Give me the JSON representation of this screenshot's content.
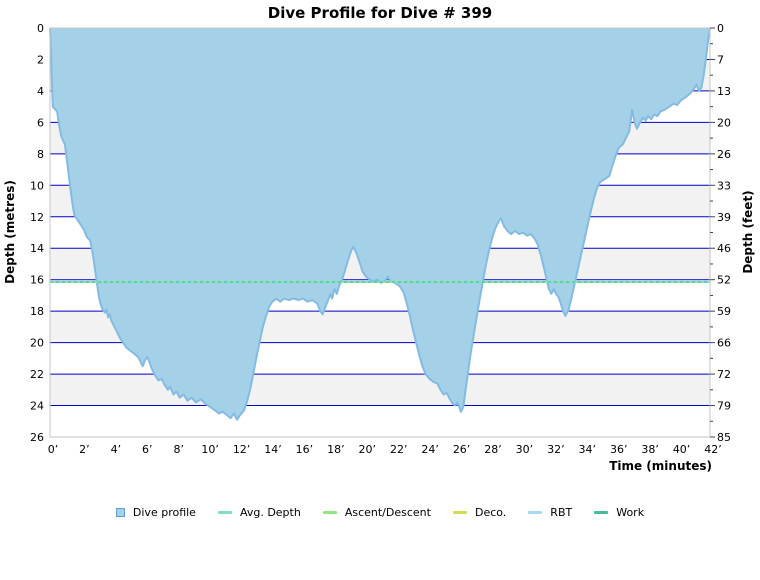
{
  "title": "Dive Profile for Dive # 399",
  "axes": {
    "left_label": "Depth (metres)",
    "right_label": "Depth (feet)",
    "bottom_label": "Time (minutes)",
    "metre_tick_labels": [
      "0",
      "2",
      "4",
      "6",
      "8",
      "10",
      "12",
      "14",
      "16",
      "18",
      "20",
      "22",
      "24",
      "26"
    ],
    "feet_tick_labels": [
      "0",
      "7",
      "13",
      "20",
      "26",
      "33",
      "39",
      "46",
      "52",
      "59",
      "66",
      "72",
      "79",
      "85"
    ],
    "time_tick_labels": [
      "0’",
      "2’",
      "4’",
      "6’",
      "8’",
      "10’",
      "12’",
      "14’",
      "16’",
      "18’",
      "20’",
      "22’",
      "24’",
      "26’",
      "28’",
      "30’",
      "32’",
      "34’",
      "36’",
      "38’",
      "40’",
      "42’"
    ]
  },
  "colors": {
    "profile_fill": "#a4d1e8",
    "profile_stroke": "#83bbe3",
    "gridline": "#0000cd",
    "band_gray": "#f2f2f2",
    "band_white": "#ffffff",
    "plot_border": "#c6c6c6",
    "avg_depth_green": "#8de68f",
    "avg_depth_teal": "#5ad0b2",
    "tick": "#444444"
  },
  "legend": {
    "items": [
      {
        "label": "Dive profile",
        "marker": "square",
        "color": "#a6d2e8"
      },
      {
        "label": "Avg. Depth",
        "marker": "line",
        "color": "#82e0c0"
      },
      {
        "label": "Ascent/Descent",
        "marker": "line",
        "color": "#90e87e"
      },
      {
        "label": "Deco.",
        "marker": "line",
        "color": "#d4dc52"
      },
      {
        "label": "RBT",
        "marker": "line",
        "color": "#a8d7f0"
      },
      {
        "label": "Work",
        "marker": "line",
        "color": "#44bb99"
      }
    ]
  },
  "chart_data": {
    "type": "area",
    "title": "Dive Profile for Dive # 399",
    "xlabel": "Time (minutes)",
    "ylabel": "Depth (metres)",
    "y2label": "Depth (feet)",
    "xlim": [
      0,
      42
    ],
    "ylim": [
      26,
      0
    ],
    "x_tick_step_min": 2,
    "y_tick_step_m": 2,
    "grid": true,
    "legend_position": "bottom",
    "avg_depth_m": 16.15,
    "max_depth_m": 24.9,
    "duration_min": 42,
    "series": [
      {
        "name": "Dive profile",
        "units": [
          "minutes",
          "metres"
        ],
        "points": [
          [
            0,
            0
          ],
          [
            0.08,
            2
          ],
          [
            0.13,
            3.6
          ],
          [
            0.18,
            5
          ],
          [
            0.45,
            5.3
          ],
          [
            0.6,
            6.3
          ],
          [
            0.72,
            6.9
          ],
          [
            0.95,
            7.4
          ],
          [
            1.05,
            8.2
          ],
          [
            1.15,
            9
          ],
          [
            1.25,
            9.8
          ],
          [
            1.35,
            10.6
          ],
          [
            1.45,
            11.3
          ],
          [
            1.55,
            11.9
          ],
          [
            1.75,
            12.2
          ],
          [
            1.95,
            12.5
          ],
          [
            2.15,
            12.8
          ],
          [
            2.35,
            13.3
          ],
          [
            2.55,
            13.5
          ],
          [
            2.7,
            14.2
          ],
          [
            2.8,
            14.9
          ],
          [
            2.9,
            15.6
          ],
          [
            3,
            16.3
          ],
          [
            3.1,
            17
          ],
          [
            3.2,
            17.5
          ],
          [
            3.35,
            17.9
          ],
          [
            3.5,
            18.1
          ],
          [
            3.6,
            17.9
          ],
          [
            3.7,
            18.4
          ],
          [
            3.8,
            18.2
          ],
          [
            3.9,
            18.6
          ],
          [
            4.05,
            18.9
          ],
          [
            4.25,
            19.3
          ],
          [
            4.45,
            19.7
          ],
          [
            4.65,
            20
          ],
          [
            4.85,
            20.3
          ],
          [
            5.1,
            20.5
          ],
          [
            5.35,
            20.7
          ],
          [
            5.6,
            20.9
          ],
          [
            5.75,
            21.2
          ],
          [
            5.9,
            21.5
          ],
          [
            6.05,
            21.1
          ],
          [
            6.2,
            20.9
          ],
          [
            6.35,
            21.3
          ],
          [
            6.5,
            21.7
          ],
          [
            6.7,
            22.1
          ],
          [
            6.9,
            22.4
          ],
          [
            7.1,
            22.3
          ],
          [
            7.3,
            22.7
          ],
          [
            7.5,
            23
          ],
          [
            7.65,
            22.8
          ],
          [
            7.85,
            23.3
          ],
          [
            8.05,
            23.1
          ],
          [
            8.25,
            23.5
          ],
          [
            8.5,
            23.3
          ],
          [
            8.75,
            23.7
          ],
          [
            9,
            23.5
          ],
          [
            9.3,
            23.8
          ],
          [
            9.6,
            23.6
          ],
          [
            9.9,
            23.9
          ],
          [
            10.2,
            24.1
          ],
          [
            10.5,
            24.3
          ],
          [
            10.75,
            24.5
          ],
          [
            11,
            24.4
          ],
          [
            11.25,
            24.6
          ],
          [
            11.5,
            24.8
          ],
          [
            11.7,
            24.5
          ],
          [
            11.9,
            24.9
          ],
          [
            12.1,
            24.6
          ],
          [
            12.35,
            24.3
          ],
          [
            12.55,
            23.7
          ],
          [
            12.75,
            22.9
          ],
          [
            12.95,
            21.9
          ],
          [
            13.15,
            20.9
          ],
          [
            13.35,
            19.9
          ],
          [
            13.55,
            19
          ],
          [
            13.75,
            18.3
          ],
          [
            13.95,
            17.7
          ],
          [
            14.15,
            17.4
          ],
          [
            14.4,
            17.2
          ],
          [
            14.65,
            17.4
          ],
          [
            14.9,
            17.2
          ],
          [
            15.2,
            17.3
          ],
          [
            15.5,
            17.2
          ],
          [
            15.8,
            17.3
          ],
          [
            16.1,
            17.2
          ],
          [
            16.4,
            17.4
          ],
          [
            16.7,
            17.3
          ],
          [
            17,
            17.5
          ],
          [
            17.2,
            18
          ],
          [
            17.35,
            18.2
          ],
          [
            17.5,
            17.8
          ],
          [
            17.7,
            17.3
          ],
          [
            17.85,
            16.9
          ],
          [
            17.95,
            17.2
          ],
          [
            18.1,
            16.6
          ],
          [
            18.25,
            16.9
          ],
          [
            18.4,
            16.4
          ],
          [
            18.55,
            16.1
          ],
          [
            18.75,
            15.5
          ],
          [
            18.95,
            14.8
          ],
          [
            19.15,
            14.2
          ],
          [
            19.3,
            13.9
          ],
          [
            19.5,
            14.3
          ],
          [
            19.7,
            14.9
          ],
          [
            19.9,
            15.5
          ],
          [
            20.1,
            15.8
          ],
          [
            20.35,
            16
          ],
          [
            20.6,
            16.1
          ],
          [
            20.85,
            16
          ],
          [
            21.05,
            16.2
          ],
          [
            21.3,
            16.1
          ],
          [
            21.5,
            15.8
          ],
          [
            21.65,
            16.1
          ],
          [
            21.95,
            16.2
          ],
          [
            22.25,
            16.4
          ],
          [
            22.5,
            16.8
          ],
          [
            22.7,
            17.5
          ],
          [
            22.9,
            18.3
          ],
          [
            23.1,
            19.2
          ],
          [
            23.3,
            20
          ],
          [
            23.5,
            20.8
          ],
          [
            23.7,
            21.5
          ],
          [
            23.9,
            22
          ],
          [
            24.15,
            22.3
          ],
          [
            24.4,
            22.5
          ],
          [
            24.65,
            22.6
          ],
          [
            24.85,
            23
          ],
          [
            25.05,
            23.3
          ],
          [
            25.25,
            23.2
          ],
          [
            25.45,
            23.6
          ],
          [
            25.65,
            23.9
          ],
          [
            25.8,
            24
          ],
          [
            25.92,
            23.8
          ],
          [
            26.05,
            24.1
          ],
          [
            26.15,
            24.4
          ],
          [
            26.3,
            24.1
          ],
          [
            26.45,
            23
          ],
          [
            26.6,
            21.9
          ],
          [
            26.75,
            20.8
          ],
          [
            26.95,
            19.6
          ],
          [
            27.15,
            18.4
          ],
          [
            27.35,
            17.2
          ],
          [
            27.55,
            16.1
          ],
          [
            27.75,
            15
          ],
          [
            27.95,
            14.1
          ],
          [
            28.15,
            13.3
          ],
          [
            28.35,
            12.7
          ],
          [
            28.55,
            12.3
          ],
          [
            28.7,
            12.1
          ],
          [
            28.9,
            12.6
          ],
          [
            29.1,
            12.9
          ],
          [
            29.35,
            13.1
          ],
          [
            29.6,
            12.9
          ],
          [
            29.85,
            13.1
          ],
          [
            30.1,
            13
          ],
          [
            30.35,
            13.2
          ],
          [
            30.6,
            13.1
          ],
          [
            30.85,
            13.4
          ],
          [
            31.05,
            13.8
          ],
          [
            31.25,
            14.5
          ],
          [
            31.45,
            15.3
          ],
          [
            31.6,
            16
          ],
          [
            31.75,
            16.6
          ],
          [
            31.9,
            16.9
          ],
          [
            32.05,
            16.6
          ],
          [
            32.2,
            16.9
          ],
          [
            32.35,
            17.1
          ],
          [
            32.5,
            17.5
          ],
          [
            32.65,
            18
          ],
          [
            32.8,
            18.3
          ],
          [
            33,
            17.9
          ],
          [
            33.2,
            17.1
          ],
          [
            33.4,
            16.2
          ],
          [
            33.6,
            15.3
          ],
          [
            33.8,
            14.4
          ],
          [
            34,
            13.5
          ],
          [
            34.2,
            12.6
          ],
          [
            34.4,
            11.7
          ],
          [
            34.6,
            10.9
          ],
          [
            34.8,
            10.2
          ],
          [
            35,
            9.8
          ],
          [
            35.3,
            9.6
          ],
          [
            35.6,
            9.4
          ],
          [
            35.8,
            8.7
          ],
          [
            36,
            8.1
          ],
          [
            36.2,
            7.6
          ],
          [
            36.45,
            7.4
          ],
          [
            36.65,
            7
          ],
          [
            36.85,
            6.6
          ],
          [
            37.05,
            5.2
          ],
          [
            37.2,
            6
          ],
          [
            37.35,
            6.4
          ],
          [
            37.55,
            6
          ],
          [
            37.75,
            5.7
          ],
          [
            37.9,
            5.9
          ],
          [
            38.05,
            5.6
          ],
          [
            38.25,
            5.8
          ],
          [
            38.45,
            5.5
          ],
          [
            38.65,
            5.6
          ],
          [
            38.85,
            5.3
          ],
          [
            39.1,
            5.2
          ],
          [
            39.4,
            5
          ],
          [
            39.7,
            4.8
          ],
          [
            39.9,
            4.9
          ],
          [
            40.15,
            4.6
          ],
          [
            40.45,
            4.4
          ],
          [
            40.7,
            4.2
          ],
          [
            40.95,
            3.9
          ],
          [
            41.15,
            3.6
          ],
          [
            41.3,
            4
          ],
          [
            41.45,
            3.8
          ],
          [
            41.6,
            3
          ],
          [
            41.75,
            1.9
          ],
          [
            41.9,
            0.6
          ],
          [
            42,
            0
          ]
        ]
      }
    ]
  }
}
